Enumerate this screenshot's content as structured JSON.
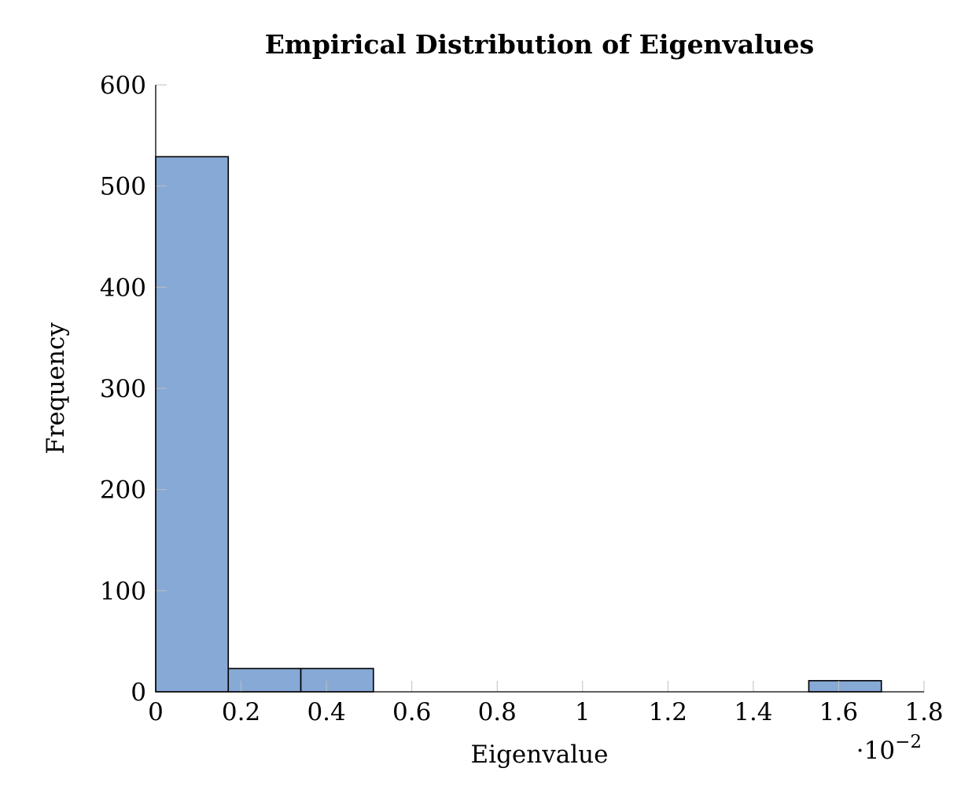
{
  "chart_data": {
    "type": "bar",
    "title": "Empirical Distribution of Eigenvalues",
    "xlabel": "Eigenvalue",
    "ylabel": "Frequency",
    "x_scale_label_base": "·10",
    "x_scale_label_exp": "−2",
    "xlim": [
      0,
      1.8
    ],
    "ylim": [
      0,
      600
    ],
    "x_ticks": [
      0,
      0.2,
      0.4,
      0.6,
      0.8,
      1,
      1.2,
      1.4,
      1.6,
      1.8
    ],
    "x_tick_labels": [
      "0",
      "0.2",
      "0.4",
      "0.6",
      "0.8",
      "1",
      "1.2",
      "1.4",
      "1.6",
      "1.8"
    ],
    "y_ticks": [
      0,
      100,
      200,
      300,
      400,
      500,
      600
    ],
    "y_tick_labels": [
      "0",
      "100",
      "200",
      "300",
      "400",
      "500",
      "600"
    ],
    "bins": [
      {
        "x0": 0.0,
        "x1": 0.17,
        "value": 529
      },
      {
        "x0": 0.17,
        "x1": 0.34,
        "value": 23
      },
      {
        "x0": 0.34,
        "x1": 0.51,
        "value": 23
      },
      {
        "x0": 0.51,
        "x1": 0.68,
        "value": 0
      },
      {
        "x0": 0.68,
        "x1": 0.85,
        "value": 0
      },
      {
        "x0": 0.85,
        "x1": 1.02,
        "value": 0
      },
      {
        "x0": 1.02,
        "x1": 1.19,
        "value": 0
      },
      {
        "x0": 1.19,
        "x1": 1.36,
        "value": 0
      },
      {
        "x0": 1.36,
        "x1": 1.53,
        "value": 0
      },
      {
        "x0": 1.53,
        "x1": 1.7,
        "value": 11
      }
    ],
    "bar_color": "#87a9d6",
    "grid": false,
    "legend": "none"
  }
}
